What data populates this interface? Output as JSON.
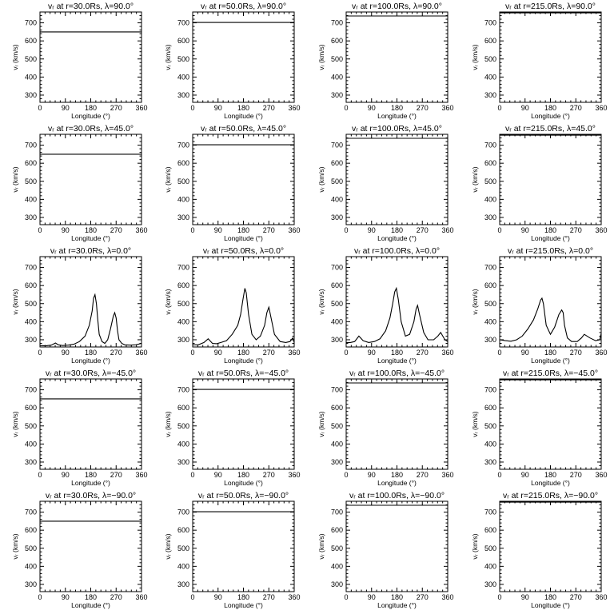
{
  "chart_data": {
    "type": "line",
    "layout": "grid",
    "rows": 5,
    "cols": 4,
    "xlabel": "Longitude (°)",
    "ylabel": "vᵣ (km/s)",
    "xlim": [
      0,
      360
    ],
    "ylim": [
      260,
      760
    ],
    "x_ticks": [
      0,
      90,
      180,
      270,
      360
    ],
    "y_ticks": [
      300,
      400,
      500,
      600,
      700
    ],
    "panels": [
      {
        "title": "vᵣ at r=30.0Rs,  λ=90.0°",
        "x": [
          0,
          360
        ],
        "y": [
          650,
          650
        ]
      },
      {
        "title": "vᵣ at r=50.0Rs,  λ=90.0°",
        "x": [
          0,
          360
        ],
        "y": [
          702,
          702
        ]
      },
      {
        "title": "vᵣ at r=100.0Rs,  λ=90.0°",
        "x": [
          0,
          360
        ],
        "y": [
          738,
          738
        ]
      },
      {
        "title": "vᵣ at r=215.0Rs,  λ=90.0°",
        "x": [
          0,
          360
        ],
        "y": [
          755,
          755
        ]
      },
      {
        "title": "vᵣ at r=30.0Rs,  λ=45.0°",
        "x": [
          0,
          360
        ],
        "y": [
          650,
          650
        ]
      },
      {
        "title": "vᵣ at r=50.0Rs,  λ=45.0°",
        "x": [
          0,
          360
        ],
        "y": [
          702,
          702
        ]
      },
      {
        "title": "vᵣ at r=100.0Rs,  λ=45.0°",
        "x": [
          0,
          360
        ],
        "y": [
          738,
          738
        ]
      },
      {
        "title": "vᵣ at r=215.0Rs,  λ=45.0°",
        "x": [
          0,
          360
        ],
        "y": [
          755,
          755
        ]
      },
      {
        "title": "vᵣ at r=30.0Rs,  λ=0.0°",
        "x": [
          0,
          20,
          40,
          55,
          65,
          80,
          100,
          120,
          140,
          160,
          175,
          185,
          190,
          195,
          200,
          205,
          210,
          220,
          230,
          240,
          250,
          260,
          265,
          270,
          275,
          280,
          290,
          300,
          320,
          340,
          360
        ],
        "y": [
          268,
          266,
          270,
          282,
          272,
          268,
          270,
          275,
          290,
          320,
          380,
          460,
          530,
          550,
          500,
          410,
          330,
          290,
          280,
          300,
          360,
          430,
          450,
          420,
          350,
          300,
          280,
          272,
          270,
          272,
          280
        ]
      },
      {
        "title": "vᵣ at r=50.0Rs,  λ=0.0°",
        "x": [
          0,
          20,
          40,
          55,
          70,
          85,
          100,
          120,
          140,
          160,
          170,
          178,
          185,
          190,
          198,
          210,
          225,
          240,
          255,
          263,
          270,
          278,
          290,
          310,
          330,
          345,
          355,
          360
        ],
        "y": [
          272,
          272,
          285,
          305,
          280,
          278,
          285,
          295,
          330,
          380,
          440,
          520,
          585,
          560,
          440,
          330,
          300,
          320,
          380,
          450,
          480,
          420,
          330,
          290,
          285,
          290,
          310,
          285
        ]
      },
      {
        "title": "vᵣ at r=100.0Rs,  λ=0.0°",
        "x": [
          0,
          15,
          30,
          45,
          60,
          80,
          100,
          120,
          140,
          155,
          165,
          172,
          178,
          185,
          195,
          210,
          225,
          240,
          248,
          253,
          260,
          275,
          290,
          310,
          325,
          335,
          350,
          360
        ],
        "y": [
          285,
          285,
          290,
          320,
          295,
          285,
          290,
          305,
          350,
          420,
          500,
          565,
          585,
          520,
          400,
          320,
          330,
          400,
          470,
          490,
          440,
          340,
          300,
          300,
          320,
          340,
          300,
          290
        ]
      },
      {
        "title": "vᵣ at r=215.0Rs,  λ=0.0°",
        "x": [
          0,
          20,
          40,
          60,
          80,
          100,
          120,
          135,
          145,
          150,
          155,
          165,
          180,
          195,
          210,
          220,
          225,
          230,
          240,
          255,
          275,
          290,
          300,
          320,
          340,
          355,
          360
        ],
        "y": [
          300,
          295,
          292,
          300,
          320,
          360,
          410,
          470,
          520,
          530,
          500,
          380,
          330,
          370,
          440,
          465,
          450,
          380,
          310,
          290,
          290,
          310,
          330,
          310,
          295,
          300,
          335
        ]
      },
      {
        "title": "vᵣ at r=30.0Rs,  λ=−45.0°",
        "x": [
          0,
          360
        ],
        "y": [
          650,
          650
        ]
      },
      {
        "title": "vᵣ at r=50.0Rs,  λ=−45.0°",
        "x": [
          0,
          360
        ],
        "y": [
          702,
          702
        ]
      },
      {
        "title": "vᵣ at r=100.0Rs,  λ=−45.0°",
        "x": [
          0,
          360
        ],
        "y": [
          738,
          738
        ]
      },
      {
        "title": "vᵣ at r=215.0Rs,  λ=−45.0°",
        "x": [
          0,
          360
        ],
        "y": [
          755,
          755
        ]
      },
      {
        "title": "vᵣ at r=30.0Rs,  λ=−90.0°",
        "x": [
          0,
          360
        ],
        "y": [
          650,
          650
        ]
      },
      {
        "title": "vᵣ at r=50.0Rs,  λ=−90.0°",
        "x": [
          0,
          360
        ],
        "y": [
          702,
          702
        ]
      },
      {
        "title": "vᵣ at r=100.0Rs,  λ=−90.0°",
        "x": [
          0,
          360
        ],
        "y": [
          738,
          738
        ]
      },
      {
        "title": "vᵣ at r=215.0Rs,  λ=−90.0°",
        "x": [
          0,
          360
        ],
        "y": [
          755,
          755
        ]
      }
    ]
  }
}
